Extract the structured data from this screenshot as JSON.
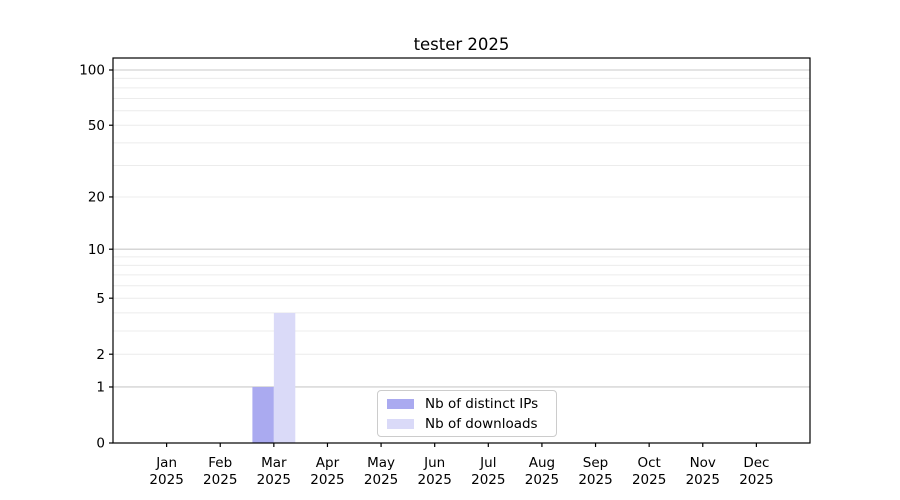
{
  "chart_data": {
    "type": "bar",
    "title": "tester 2025",
    "months": [
      "Jan",
      "Feb",
      "Mar",
      "Apr",
      "May",
      "Jun",
      "Jul",
      "Aug",
      "Sep",
      "Oct",
      "Nov",
      "Dec"
    ],
    "year": "2025",
    "series": [
      {
        "name": "Nb of distinct IPs",
        "color": "#aaaaf0",
        "values": [
          0,
          0,
          1,
          0,
          0,
          0,
          0,
          0,
          0,
          0,
          0,
          0
        ]
      },
      {
        "name": "Nb of downloads",
        "color": "#dadaf8",
        "values": [
          0,
          0,
          4,
          0,
          0,
          0,
          0,
          0,
          0,
          0,
          0,
          0
        ]
      }
    ],
    "y_axis": {
      "scale": "log1p",
      "ticks": [
        0,
        1,
        2,
        5,
        10,
        20,
        50,
        100
      ],
      "range": [
        0,
        116
      ],
      "major_gridlines": [
        1,
        10,
        100
      ],
      "minor_gridlines": [
        2,
        3,
        4,
        5,
        6,
        7,
        8,
        9,
        20,
        30,
        40,
        50,
        60,
        70,
        80,
        90
      ],
      "major_grid_color": "#c9c9c9",
      "minor_grid_color": "#ececec"
    },
    "legend": {
      "position": "lower center"
    },
    "axis_color": "#000000",
    "background": "#ffffff"
  }
}
